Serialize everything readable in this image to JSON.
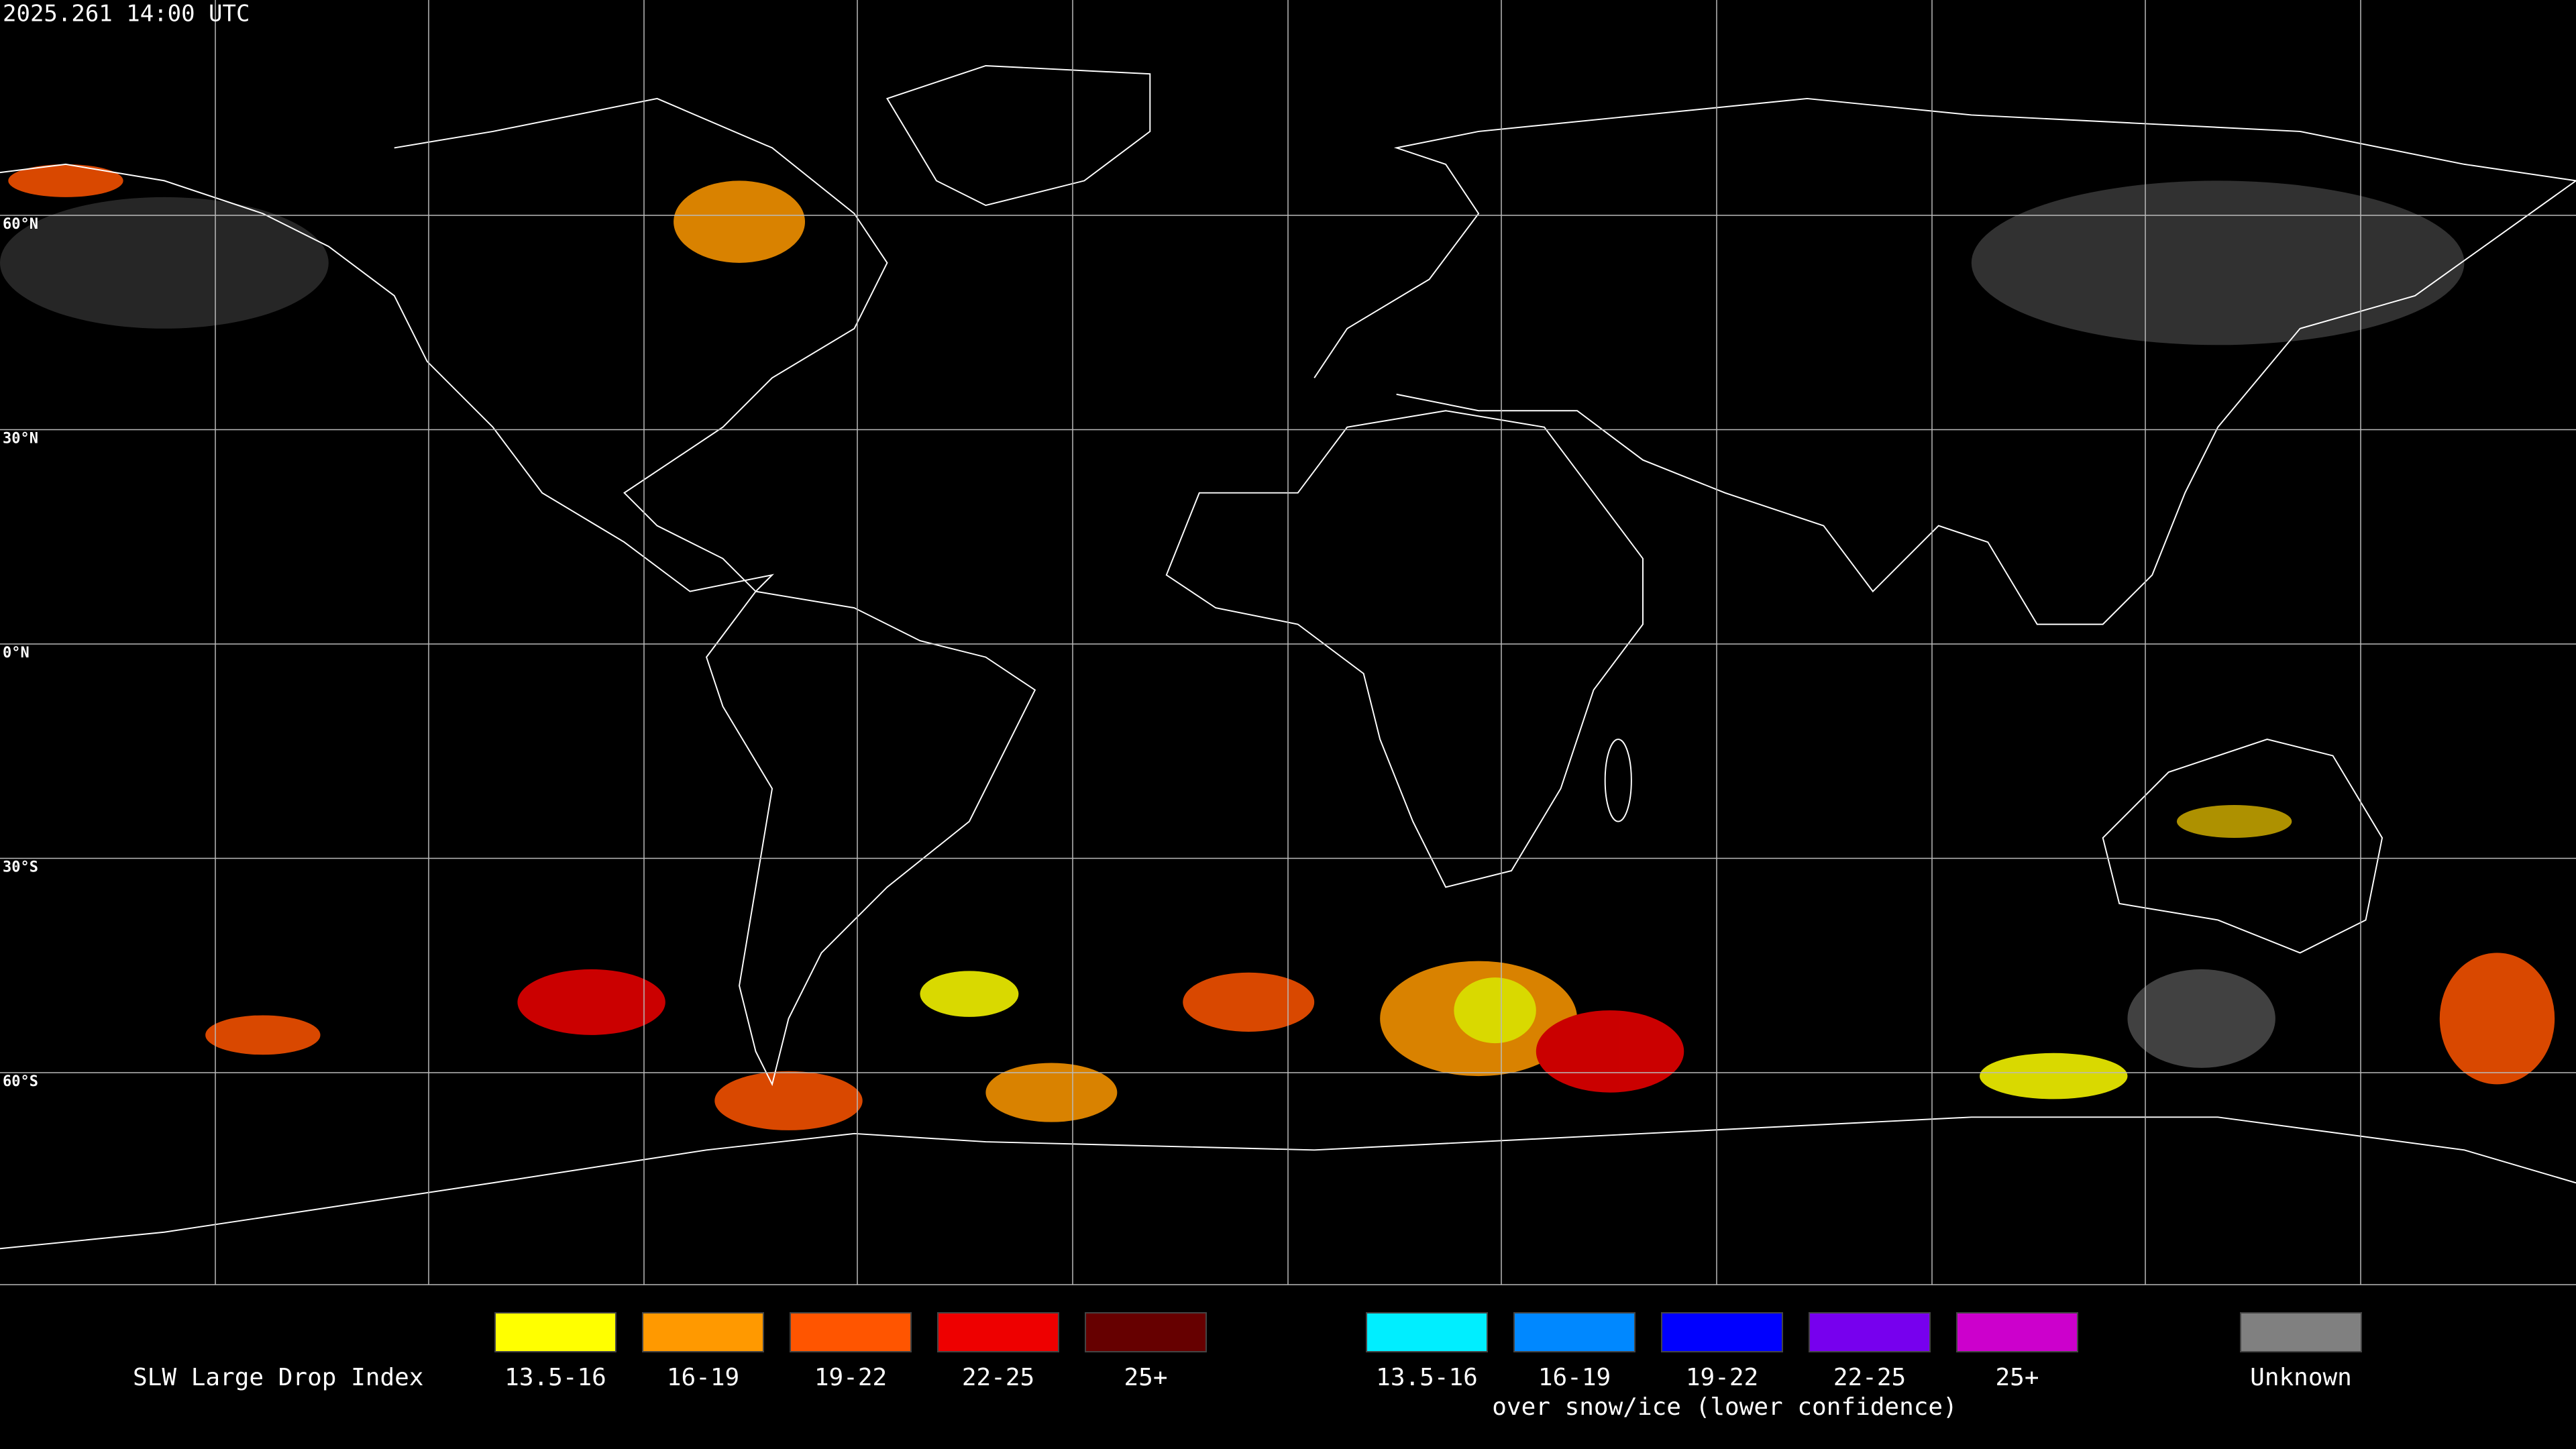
{
  "timestamp": "2025.261 14:00 UTC",
  "grid_labels": [
    "60°N",
    "30°N",
    "0°N",
    "30°S",
    "60°S"
  ],
  "legend": {
    "title": "SLW Large Drop Index",
    "items": [
      {
        "label": "13.5-16",
        "color": "#ffff00"
      },
      {
        "label": "16-19",
        "color": "#ff9900"
      },
      {
        "label": "19-22",
        "color": "#ff5500"
      },
      {
        "label": "22-25",
        "color": "#ee0000"
      },
      {
        "label": "25+",
        "color": "#660000"
      }
    ],
    "snow_items": [
      {
        "label": "13.5-16",
        "color": "#00eeff"
      },
      {
        "label": "16-19",
        "color": "#0088ff"
      },
      {
        "label": "19-22",
        "color": "#0000ff"
      },
      {
        "label": "22-25",
        "color": "#7700ee"
      },
      {
        "label": "25+",
        "color": "#cc00cc"
      }
    ],
    "snow_caption": "over snow/ice (lower confidence)",
    "unknown": {
      "label": "Unknown",
      "color": "#808080"
    }
  }
}
